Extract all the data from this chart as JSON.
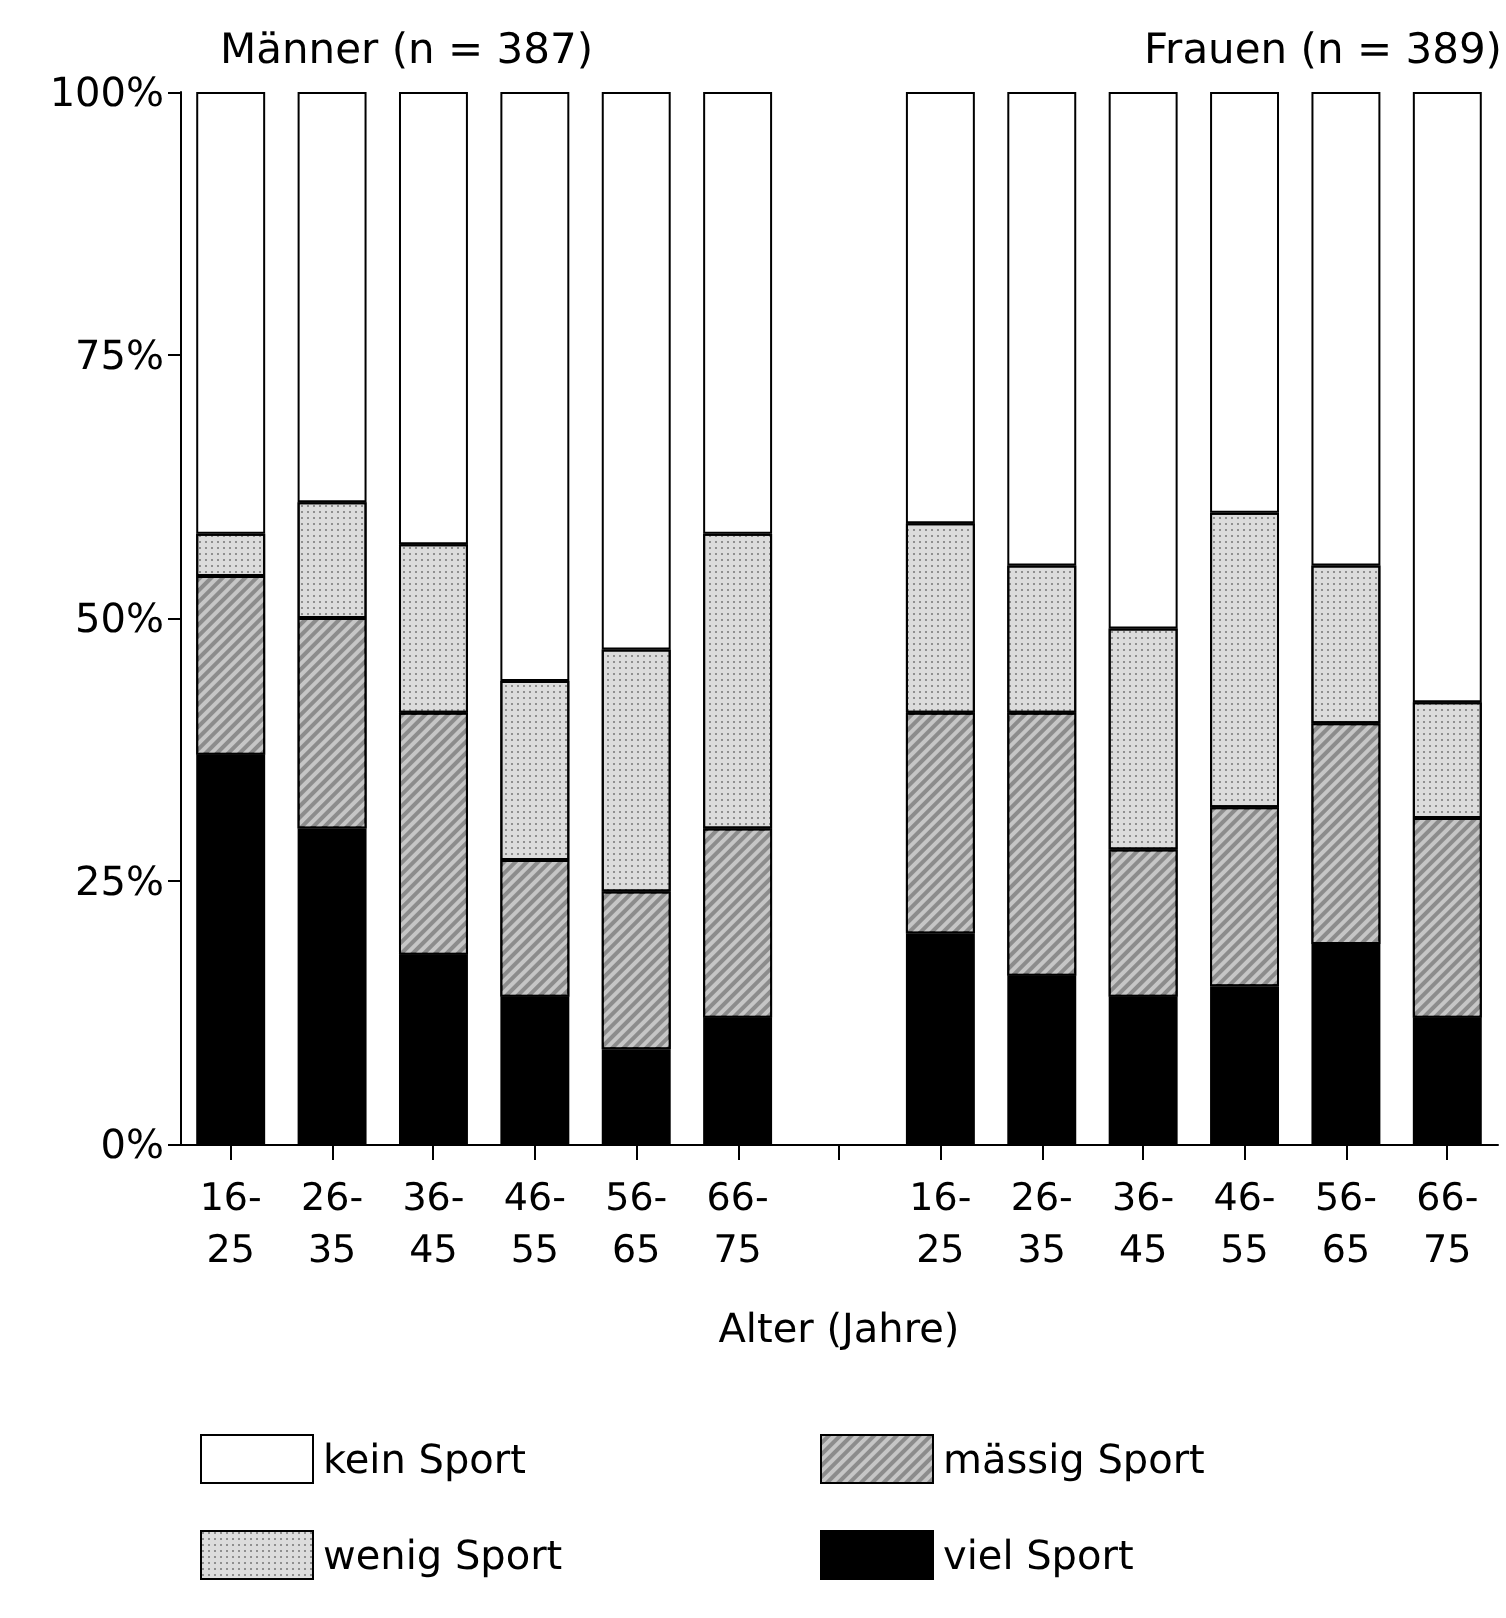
{
  "chart_data": {
    "type": "bar",
    "stacked": true,
    "xlabel": "Alter (Jahre)",
    "annotations": [
      "Männer (n = 387)",
      "Frauen (n = 389)"
    ],
    "categories": [
      "16-\n25",
      "26-\n35",
      "36-\n45",
      "46-\n55",
      "56-\n65",
      "66-\n75",
      null,
      "16-\n25",
      "26-\n35",
      "36-\n45",
      "46-\n55",
      "56-\n65",
      "66-\n75"
    ],
    "series": [
      {
        "name": "viel Sport",
        "color": "#000000",
        "values": [
          37,
          30,
          18,
          14,
          9,
          12,
          null,
          20,
          16,
          14,
          15,
          19,
          12
        ]
      },
      {
        "name": "mässig Sport",
        "color": "#8c8c8c",
        "values": [
          17,
          20,
          23,
          13,
          15,
          18,
          null,
          21,
          25,
          14,
          17,
          21,
          19
        ]
      },
      {
        "name": "wenig Sport",
        "color": "#dcdcdc",
        "values": [
          4,
          11,
          16,
          17,
          23,
          28,
          null,
          18,
          14,
          21,
          28,
          15,
          11
        ]
      },
      {
        "name": "kein Sport",
        "color": "#ffffff",
        "values": [
          42,
          39,
          43,
          56,
          53,
          42,
          null,
          41,
          45,
          51,
          40,
          45,
          58
        ]
      }
    ],
    "ylim": [
      0,
      100
    ],
    "yticks": [
      {
        "value": 0,
        "label": "0%"
      },
      {
        "value": 25,
        "label": "25%"
      },
      {
        "value": 50,
        "label": "50%"
      },
      {
        "value": 75,
        "label": "75%"
      },
      {
        "value": 100,
        "label": "100%"
      }
    ],
    "grid": false,
    "legend": "bottom"
  }
}
